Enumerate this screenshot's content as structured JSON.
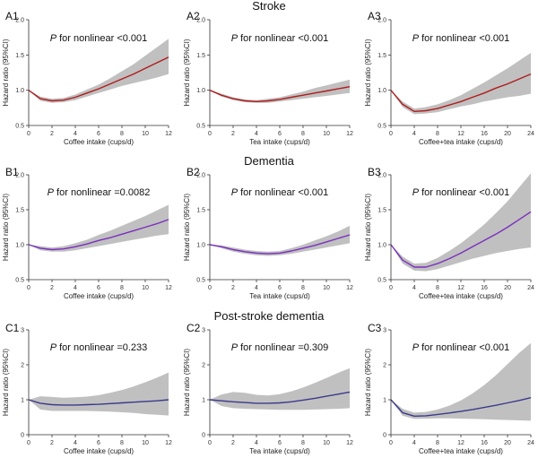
{
  "sections": [
    {
      "title": "Stroke",
      "panel_labels": [
        "A1",
        "A2",
        "A3"
      ]
    },
    {
      "title": "Dementia",
      "panel_labels": [
        "B1",
        "B2",
        "B3"
      ]
    },
    {
      "title": "Post-stroke dementia",
      "panel_labels": [
        "C1",
        "C2",
        "C3"
      ]
    }
  ],
  "colors": {
    "stroke": "#b01c1c",
    "dementia": "#7a2fbf",
    "psd": "#3a3a8c",
    "band": "#b5b5b5"
  },
  "chart_data": [
    {
      "id": "A1",
      "type": "line",
      "row": "Stroke",
      "p_prefix": "P",
      "p_text": " for nonlinear <0.001",
      "ylabel": "Hazard ratio (95%CI)",
      "xlabel": "Coffee intake (cups/d)",
      "ylim": [
        0.5,
        2.0
      ],
      "yticks": [
        "0.5",
        "1.0",
        "1.5",
        "2.0"
      ],
      "xlim": [
        0,
        12
      ],
      "xticks": [
        "0",
        "2",
        "4",
        "6",
        "8",
        "10",
        "12"
      ],
      "x": [
        0,
        1,
        2,
        3,
        4,
        5,
        6,
        7,
        8,
        9,
        10,
        11,
        12
      ],
      "hr": [
        1.0,
        0.88,
        0.85,
        0.86,
        0.9,
        0.96,
        1.02,
        1.09,
        1.16,
        1.23,
        1.31,
        1.39,
        1.47
      ],
      "lower": [
        1.0,
        0.85,
        0.82,
        0.83,
        0.86,
        0.91,
        0.96,
        1.01,
        1.06,
        1.1,
        1.14,
        1.18,
        1.23
      ],
      "upper": [
        1.0,
        0.91,
        0.88,
        0.89,
        0.94,
        1.01,
        1.08,
        1.17,
        1.27,
        1.37,
        1.49,
        1.61,
        1.73
      ]
    },
    {
      "id": "A2",
      "type": "line",
      "row": "Stroke",
      "p_prefix": "P",
      "p_text": " for nonlinear <0.001",
      "ylabel": "Hazard ratio (95%CI)",
      "xlabel": "Tea intake (cups/d)",
      "ylim": [
        0.5,
        2.0
      ],
      "yticks": [
        "0.5",
        "1.0",
        "1.5",
        "2.0"
      ],
      "xlim": [
        0,
        12
      ],
      "xticks": [
        "0",
        "2",
        "4",
        "6",
        "8",
        "10",
        "12"
      ],
      "x": [
        0,
        1,
        2,
        3,
        4,
        5,
        6,
        7,
        8,
        9,
        10,
        11,
        12
      ],
      "hr": [
        1.0,
        0.93,
        0.88,
        0.85,
        0.84,
        0.85,
        0.87,
        0.9,
        0.93,
        0.96,
        0.99,
        1.02,
        1.05
      ],
      "lower": [
        1.0,
        0.91,
        0.86,
        0.83,
        0.82,
        0.82,
        0.84,
        0.86,
        0.88,
        0.9,
        0.92,
        0.94,
        0.96
      ],
      "upper": [
        1.0,
        0.95,
        0.9,
        0.87,
        0.86,
        0.88,
        0.9,
        0.94,
        0.98,
        1.03,
        1.07,
        1.11,
        1.15
      ]
    },
    {
      "id": "A3",
      "type": "line",
      "row": "Stroke",
      "p_prefix": "P",
      "p_text": " for nonlinear <0.001",
      "ylabel": "Hazard ratio (95%CI)",
      "xlabel": "Coffee+tea intake (cups/d)",
      "ylim": [
        0.5,
        2.0
      ],
      "yticks": [
        "0.5",
        "1.0",
        "1.5",
        "2.0"
      ],
      "xlim": [
        0,
        24
      ],
      "xticks": [
        "0",
        "4",
        "8",
        "12",
        "16",
        "20",
        "24"
      ],
      "x": [
        0,
        2,
        4,
        6,
        8,
        10,
        12,
        14,
        16,
        18,
        20,
        22,
        24
      ],
      "hr": [
        1.0,
        0.8,
        0.7,
        0.71,
        0.74,
        0.79,
        0.84,
        0.9,
        0.96,
        1.03,
        1.09,
        1.16,
        1.23
      ],
      "lower": [
        1.0,
        0.76,
        0.66,
        0.67,
        0.69,
        0.73,
        0.77,
        0.8,
        0.84,
        0.87,
        0.9,
        0.92,
        0.95
      ],
      "upper": [
        1.0,
        0.84,
        0.74,
        0.76,
        0.8,
        0.86,
        0.93,
        1.02,
        1.11,
        1.21,
        1.31,
        1.42,
        1.53
      ]
    },
    {
      "id": "B1",
      "type": "line",
      "row": "Dementia",
      "p_prefix": "P",
      "p_text": " for nonlinear =0.0082",
      "ylabel": "Hazard ratio (95%CI)",
      "xlabel": "Coffee intake (cups/d)",
      "ylim": [
        0.5,
        2.0
      ],
      "yticks": [
        "0.5",
        "1.0",
        "1.5",
        "2.0"
      ],
      "xlim": [
        0,
        12
      ],
      "xticks": [
        "0",
        "2",
        "4",
        "6",
        "8",
        "10",
        "12"
      ],
      "x": [
        0,
        1,
        2,
        3,
        4,
        5,
        6,
        7,
        8,
        9,
        10,
        11,
        12
      ],
      "hr": [
        1.0,
        0.95,
        0.93,
        0.94,
        0.97,
        1.01,
        1.06,
        1.1,
        1.15,
        1.2,
        1.25,
        1.3,
        1.36
      ],
      "lower": [
        1.0,
        0.92,
        0.9,
        0.9,
        0.92,
        0.95,
        0.98,
        1.01,
        1.04,
        1.07,
        1.1,
        1.13,
        1.15
      ],
      "upper": [
        1.0,
        0.98,
        0.96,
        0.98,
        1.02,
        1.07,
        1.14,
        1.2,
        1.27,
        1.34,
        1.41,
        1.49,
        1.57
      ]
    },
    {
      "id": "B2",
      "type": "line",
      "row": "Dementia",
      "p_prefix": "P",
      "p_text": " for nonlinear <0.001",
      "ylabel": "Hazard ratio (95%CI)",
      "xlabel": "Tea intake (cups/d)",
      "ylim": [
        0.5,
        2.0
      ],
      "yticks": [
        "0.5",
        "1.0",
        "1.5",
        "2.0"
      ],
      "xlim": [
        0,
        12
      ],
      "xticks": [
        "0",
        "2",
        "4",
        "6",
        "8",
        "10",
        "12"
      ],
      "x": [
        0,
        1,
        2,
        3,
        4,
        5,
        6,
        7,
        8,
        9,
        10,
        11,
        12
      ],
      "hr": [
        1.0,
        0.97,
        0.93,
        0.9,
        0.88,
        0.87,
        0.88,
        0.91,
        0.95,
        0.99,
        1.04,
        1.09,
        1.14
      ],
      "lower": [
        1.0,
        0.95,
        0.9,
        0.87,
        0.85,
        0.84,
        0.85,
        0.87,
        0.9,
        0.93,
        0.96,
        0.99,
        1.02
      ],
      "upper": [
        1.0,
        0.99,
        0.96,
        0.93,
        0.91,
        0.9,
        0.91,
        0.95,
        1.0,
        1.06,
        1.12,
        1.19,
        1.27
      ]
    },
    {
      "id": "B3",
      "type": "line",
      "row": "Dementia",
      "p_prefix": "P",
      "p_text": " for nonlinear <0.001",
      "ylabel": "Hazard ratio (95%CI)",
      "xlabel": "Coffee+tea intake (cups/d)",
      "ylim": [
        0.5,
        2.0
      ],
      "yticks": [
        "0.5",
        "1.0",
        "1.5",
        "2.0"
      ],
      "xlim": [
        0,
        24
      ],
      "xticks": [
        "0",
        "4",
        "8",
        "12",
        "16",
        "20",
        "24"
      ],
      "x": [
        0,
        2,
        4,
        6,
        8,
        10,
        12,
        14,
        16,
        18,
        20,
        22,
        24
      ],
      "hr": [
        1.0,
        0.78,
        0.68,
        0.68,
        0.73,
        0.8,
        0.88,
        0.97,
        1.06,
        1.15,
        1.25,
        1.36,
        1.47
      ],
      "lower": [
        1.0,
        0.73,
        0.63,
        0.62,
        0.65,
        0.7,
        0.75,
        0.8,
        0.84,
        0.88,
        0.91,
        0.94,
        0.96
      ],
      "upper": [
        1.0,
        0.83,
        0.73,
        0.74,
        0.81,
        0.91,
        1.02,
        1.15,
        1.29,
        1.45,
        1.62,
        1.82,
        2.02
      ]
    },
    {
      "id": "C1",
      "type": "line",
      "row": "Post-stroke dementia",
      "p_prefix": "P",
      "p_text": " for nonlinear =0.233",
      "ylabel": "Hazard ratio (95%CI)",
      "xlabel": "Coffee intake (cups/d)",
      "ylim": [
        0,
        3
      ],
      "yticks": [
        "0",
        "1",
        "2",
        "3"
      ],
      "xlim": [
        0,
        12
      ],
      "xticks": [
        "0",
        "2",
        "4",
        "6",
        "8",
        "10",
        "12"
      ],
      "x": [
        0,
        1,
        2,
        3,
        4,
        5,
        6,
        7,
        8,
        9,
        10,
        11,
        12
      ],
      "hr": [
        1.0,
        0.9,
        0.86,
        0.85,
        0.85,
        0.86,
        0.87,
        0.89,
        0.91,
        0.93,
        0.95,
        0.97,
        1.0
      ],
      "lower": [
        1.0,
        0.72,
        0.68,
        0.68,
        0.68,
        0.68,
        0.67,
        0.66,
        0.64,
        0.62,
        0.59,
        0.57,
        0.55
      ],
      "upper": [
        1.0,
        1.1,
        1.08,
        1.06,
        1.07,
        1.09,
        1.13,
        1.2,
        1.28,
        1.38,
        1.5,
        1.63,
        1.78
      ]
    },
    {
      "id": "C2",
      "type": "line",
      "row": "Post-stroke dementia",
      "p_prefix": "P",
      "p_text": " for nonlinear =0.309",
      "ylabel": "Hazard ratio (95%CI)",
      "xlabel": "Tea intake (cups/d)",
      "ylim": [
        0,
        3
      ],
      "yticks": [
        "0",
        "1",
        "2",
        "3"
      ],
      "xlim": [
        0,
        12
      ],
      "xticks": [
        "0",
        "2",
        "4",
        "6",
        "8",
        "10",
        "12"
      ],
      "x": [
        0,
        1,
        2,
        3,
        4,
        5,
        6,
        7,
        8,
        9,
        10,
        11,
        12
      ],
      "hr": [
        1.0,
        0.97,
        0.94,
        0.92,
        0.9,
        0.9,
        0.91,
        0.94,
        0.99,
        1.04,
        1.1,
        1.16,
        1.22
      ],
      "lower": [
        1.0,
        0.82,
        0.76,
        0.74,
        0.73,
        0.72,
        0.71,
        0.71,
        0.71,
        0.72,
        0.73,
        0.74,
        0.76
      ],
      "upper": [
        1.0,
        1.15,
        1.22,
        1.2,
        1.14,
        1.12,
        1.16,
        1.24,
        1.35,
        1.48,
        1.62,
        1.77,
        1.9
      ]
    },
    {
      "id": "C3",
      "type": "line",
      "row": "Post-stroke dementia",
      "p_prefix": "P",
      "p_text": " for nonlinear <0.001",
      "ylabel": "Hazard ratio (95%CI)",
      "xlabel": "Coffee+tea intake (cups/d)",
      "ylim": [
        0,
        3
      ],
      "yticks": [
        "0",
        "1",
        "2",
        "3"
      ],
      "xlim": [
        0,
        24
      ],
      "xticks": [
        "0",
        "4",
        "8",
        "12",
        "16",
        "20",
        "24"
      ],
      "x": [
        0,
        2,
        4,
        6,
        8,
        10,
        12,
        14,
        16,
        18,
        20,
        22,
        24
      ],
      "hr": [
        1.0,
        0.63,
        0.53,
        0.54,
        0.58,
        0.62,
        0.67,
        0.72,
        0.78,
        0.84,
        0.91,
        0.98,
        1.06
      ],
      "lower": [
        1.0,
        0.54,
        0.45,
        0.46,
        0.47,
        0.47,
        0.46,
        0.45,
        0.44,
        0.43,
        0.42,
        0.41,
        0.4
      ],
      "upper": [
        1.0,
        0.74,
        0.63,
        0.65,
        0.72,
        0.83,
        0.98,
        1.18,
        1.42,
        1.7,
        2.02,
        2.34,
        2.62
      ]
    }
  ]
}
